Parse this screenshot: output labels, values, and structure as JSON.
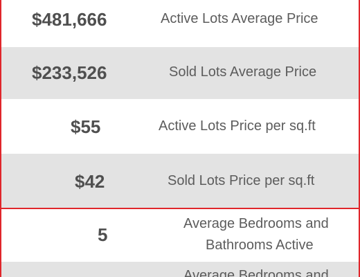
{
  "rows": [
    {
      "value": "$481,666",
      "label": "Active Lots Average Price"
    },
    {
      "value": "$233,526",
      "label": "Sold Lots Average Price"
    },
    {
      "value": "$55",
      "label": "Active Lots Price per sq.ft"
    },
    {
      "value": "$42",
      "label": "Sold Lots Price per sq.ft"
    },
    {
      "value": "5",
      "label_line1": "Average Bedrooms and",
      "label_line2": "Bathrooms Active"
    },
    {
      "value": "",
      "label_line1": "Average Bedrooms and"
    }
  ]
}
